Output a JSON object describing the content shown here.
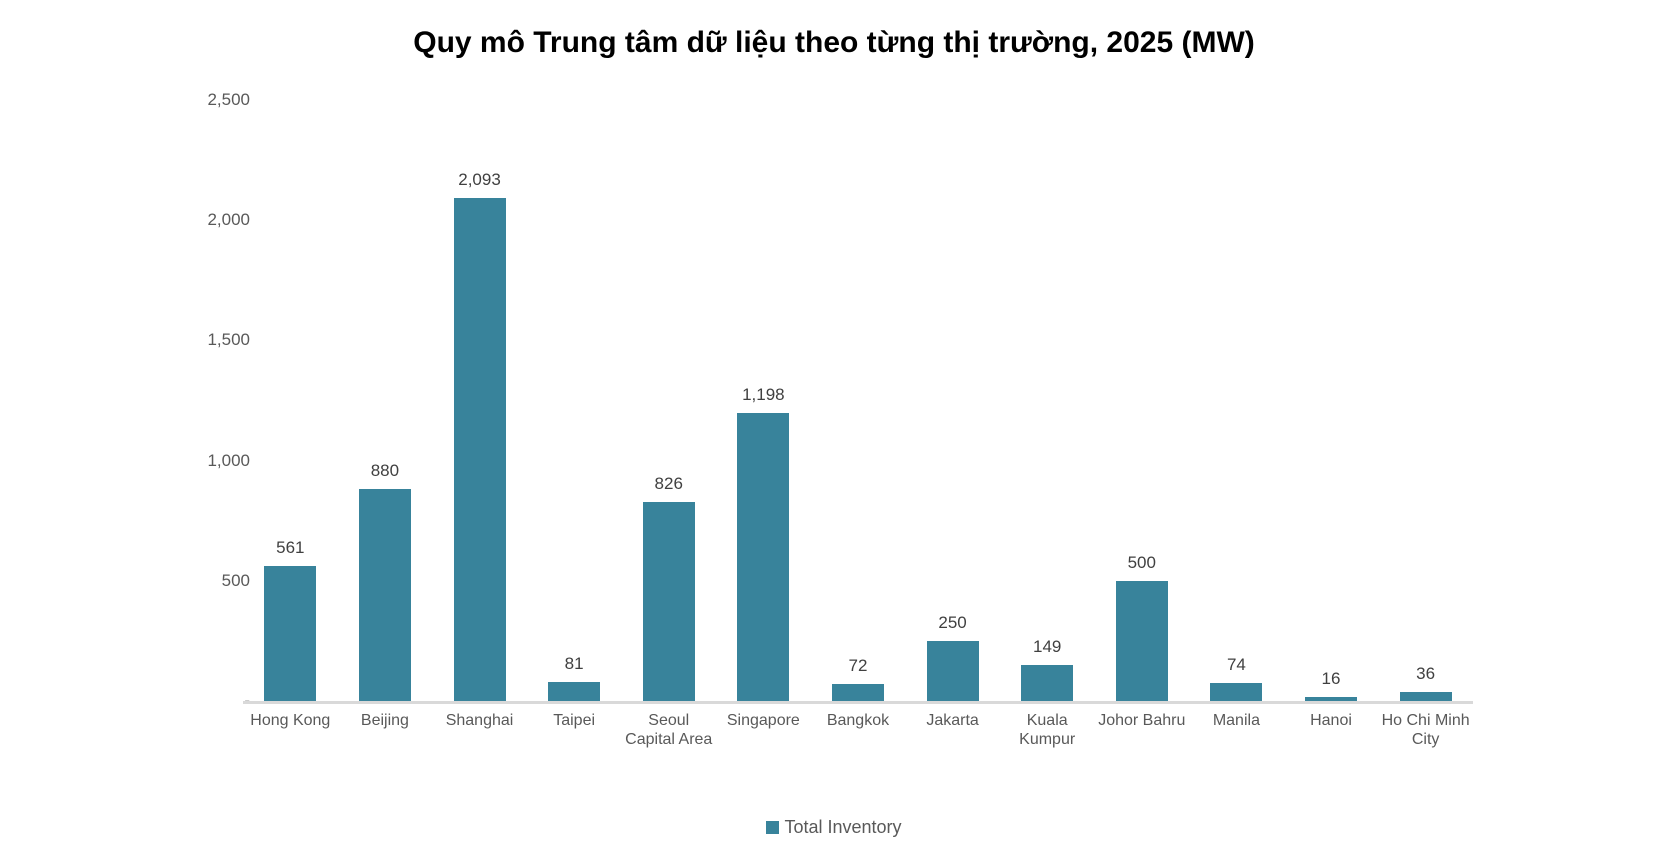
{
  "title": "Quy mô Trung tâm dữ liệu theo từng thị trường, 2025 (MW)",
  "legend": {
    "label": "Total Inventory"
  },
  "colors": {
    "bar": "#38839B",
    "axis_line": "#d9d9d9",
    "axis_text": "#595959",
    "data_label": "#404040",
    "title_text": "#000000",
    "background": "#ffffff"
  },
  "chart_data": {
    "type": "bar",
    "title": "Quy mô Trung tâm dữ liệu theo từng thị trường, 2025 (MW)",
    "categories": [
      "Hong Kong",
      "Beijing",
      "Shanghai",
      "Taipei",
      "Seoul Capital Area",
      "Singapore",
      "Bangkok",
      "Jakarta",
      "Kuala Kumpur",
      "Johor Bahru",
      "Manila",
      "Hanoi",
      "Ho Chi Minh City"
    ],
    "xlabels_display": [
      "Hong Kong",
      "Beijing",
      "Shanghai",
      "Taipei",
      "Seoul\nCapital Area",
      "Singapore",
      "Bangkok",
      "Jakarta",
      "Kuala\nKumpur",
      "Johor Bahru",
      "Manila",
      "Hanoi",
      "Ho Chi Minh\nCity"
    ],
    "values": [
      561,
      880,
      2093,
      81,
      826,
      1198,
      72,
      250,
      149,
      500,
      74,
      16,
      36
    ],
    "data_labels": [
      "561",
      "880",
      "2,093",
      "81",
      "826",
      "1,198",
      "72",
      "250",
      "149",
      "500",
      "74",
      "16",
      "36"
    ],
    "xlabel": "",
    "ylabel": "",
    "ylim": [
      0,
      2500
    ],
    "ytick_values": [
      0,
      500,
      1000,
      1500,
      2000,
      2500
    ],
    "ytick_labels": [
      "-",
      "500",
      "1,000",
      "1,500",
      "2,000",
      "2,500"
    ],
    "series_color": "#38839B",
    "legend": [
      "Total Inventory"
    ],
    "legend_position": "bottom",
    "grid": false
  }
}
